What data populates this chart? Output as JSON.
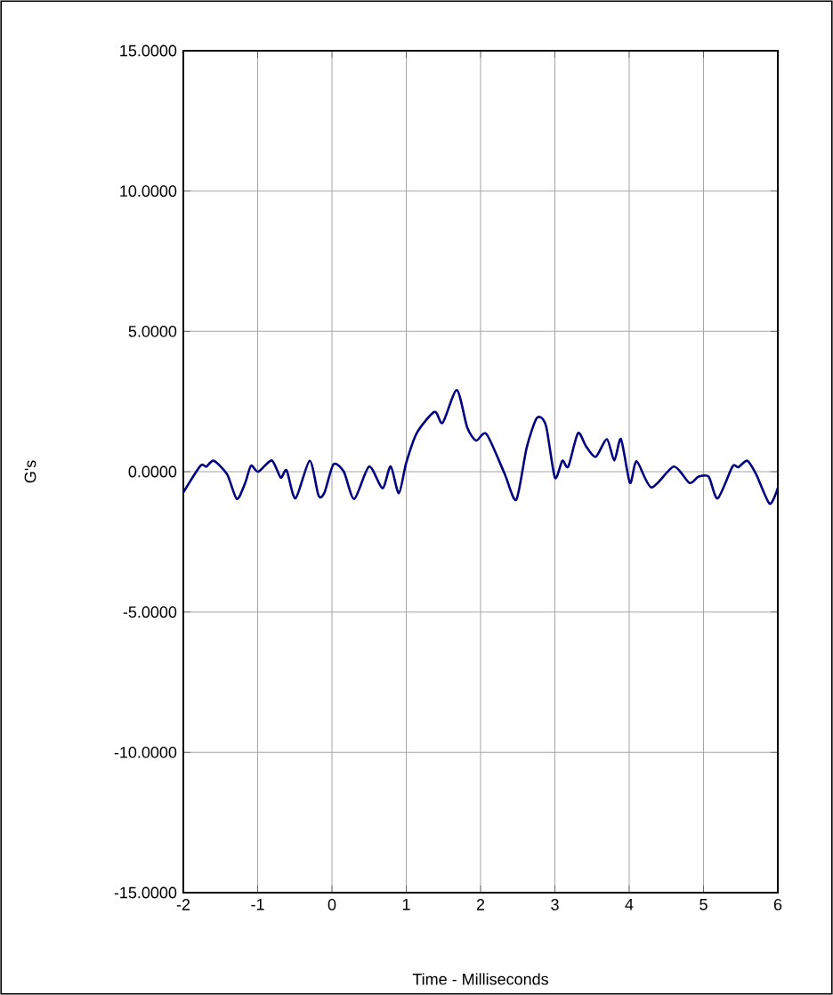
{
  "chart_data": {
    "type": "line",
    "xlabel": "Time - Milliseconds",
    "ylabel": "G's",
    "xlim": [
      -2,
      6
    ],
    "ylim": [
      -15,
      15
    ],
    "xticks": [
      -2,
      -1,
      0,
      1,
      2,
      3,
      4,
      5,
      6
    ],
    "yticks": [
      {
        "value": -15,
        "label": "-15.0000"
      },
      {
        "value": -10,
        "label": "-10.0000"
      },
      {
        "value": -5,
        "label": "-5.0000"
      },
      {
        "value": 0,
        "label": "0.0000"
      },
      {
        "value": 5,
        "label": "5.0000"
      },
      {
        "value": 10,
        "label": "10.0000"
      },
      {
        "value": 15,
        "label": "15.0000"
      }
    ],
    "grid": true,
    "line_style": "solid",
    "series": [
      {
        "color": "#000080",
        "x": [
          -2,
          -1.77,
          -1.69,
          -1.59,
          -1.41,
          -1.28,
          -1.17,
          -1.09,
          -0.99,
          -0.81,
          -0.69,
          -0.61,
          -0.49,
          -0.3,
          -0.18,
          -0.1,
          0.02,
          0.16,
          0.3,
          0.5,
          0.68,
          0.79,
          0.9,
          1.0,
          1.14,
          1.38,
          1.49,
          1.68,
          1.82,
          1.94,
          2.08,
          2.32,
          2.48,
          2.62,
          2.76,
          2.88,
          3.0,
          3.1,
          3.18,
          3.31,
          3.42,
          3.55,
          3.7,
          3.8,
          3.89,
          4.01,
          4.1,
          4.3,
          4.6,
          4.81,
          4.93,
          5.07,
          5.19,
          5.39,
          5.47,
          5.59,
          5.71,
          5.89,
          6.0
        ],
        "values": [
          -0.74,
          0.21,
          0.18,
          0.39,
          -0.1,
          -0.97,
          -0.42,
          0.21,
          0.0,
          0.4,
          -0.21,
          0.05,
          -0.95,
          0.39,
          -0.85,
          -0.74,
          0.26,
          0.0,
          -0.97,
          0.18,
          -0.59,
          0.19,
          -0.77,
          0.32,
          1.37,
          2.13,
          1.74,
          2.91,
          1.58,
          1.11,
          1.34,
          -0.05,
          -1.0,
          0.85,
          1.92,
          1.64,
          -0.21,
          0.39,
          0.18,
          1.37,
          0.9,
          0.53,
          1.16,
          0.4,
          1.16,
          -0.4,
          0.37,
          -0.56,
          0.18,
          -0.4,
          -0.18,
          -0.18,
          -0.95,
          0.18,
          0.16,
          0.39,
          -0.1,
          -1.14,
          -0.58
        ]
      }
    ]
  }
}
